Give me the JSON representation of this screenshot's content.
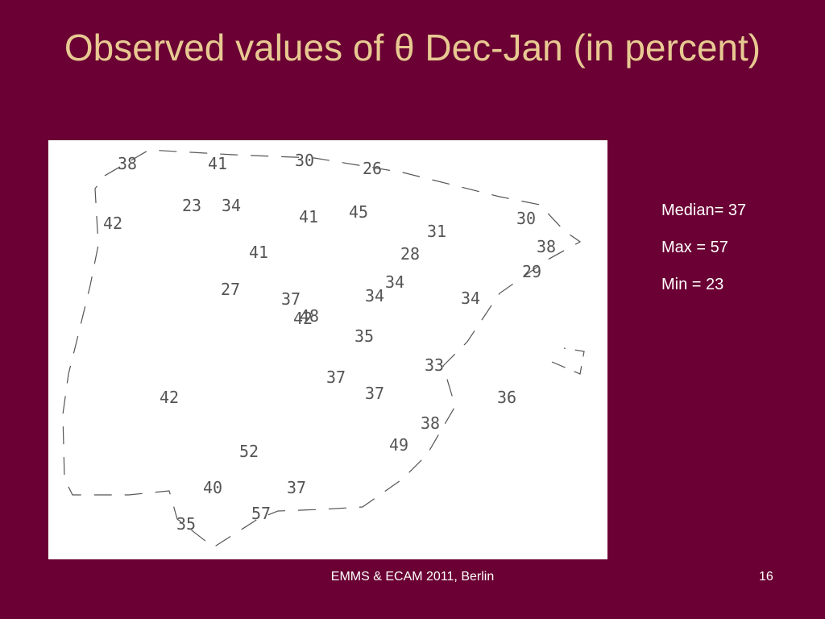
{
  "title": "Observed values of θ Dec-Jan (in percent)",
  "stats": {
    "median": "Median= 37",
    "max": "Max = 57",
    "min": "Min = 23"
  },
  "footer": {
    "text": "EMMS & ECAM 2011, Berlin",
    "page": "16"
  },
  "map_values": [
    "38",
    "41",
    "30",
    "26",
    "23",
    "34",
    "41",
    "45",
    "30",
    "42",
    "31",
    "38",
    "41",
    "28",
    "29",
    "34",
    "27",
    "37",
    "34",
    "34",
    "42",
    "48",
    "35",
    "33",
    "37",
    "37",
    "42",
    "36",
    "38",
    "52",
    "49",
    "40",
    "37",
    "57",
    "35"
  ]
}
